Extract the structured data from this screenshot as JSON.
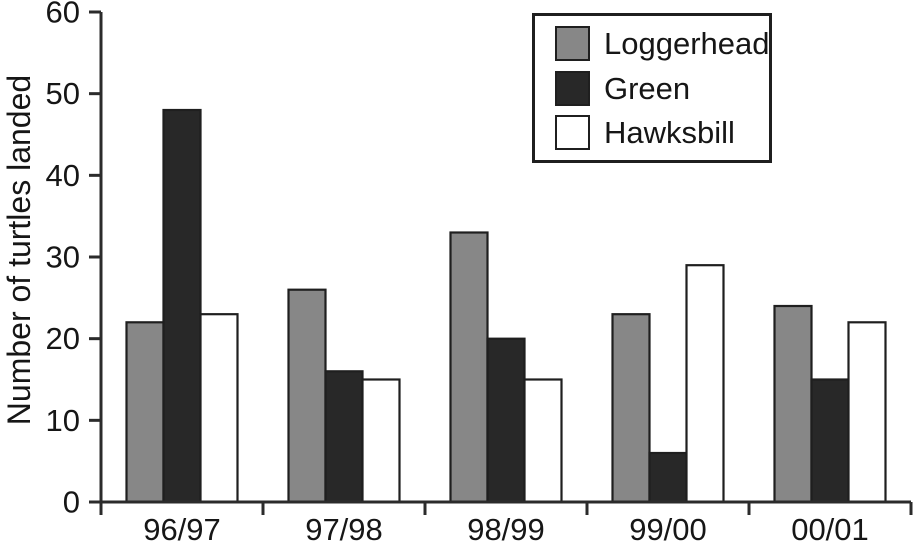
{
  "chart_data": {
    "type": "bar",
    "title": "",
    "xlabel": "",
    "ylabel": "Number of turtles landed",
    "categories": [
      "96/97",
      "97/98",
      "98/99",
      "99/00",
      "00/01"
    ],
    "series": [
      {
        "name": "Loggerhead",
        "color": "#878787",
        "values": [
          22,
          26,
          33,
          23,
          24
        ]
      },
      {
        "name": "Green",
        "color": "#282828",
        "values": [
          48,
          16,
          20,
          6,
          15
        ]
      },
      {
        "name": "Hawksbill",
        "color": "#ffffff",
        "values": [
          23,
          15,
          15,
          29,
          22
        ]
      }
    ],
    "ylim": [
      0,
      60
    ],
    "yticks": [
      0,
      10,
      20,
      30,
      40,
      50,
      60
    ],
    "grid": false,
    "legend_position": "top-right",
    "axis_color": "#2b2b2b",
    "bar_outline_color": "#1f1f1f",
    "background": "#ffffff"
  }
}
